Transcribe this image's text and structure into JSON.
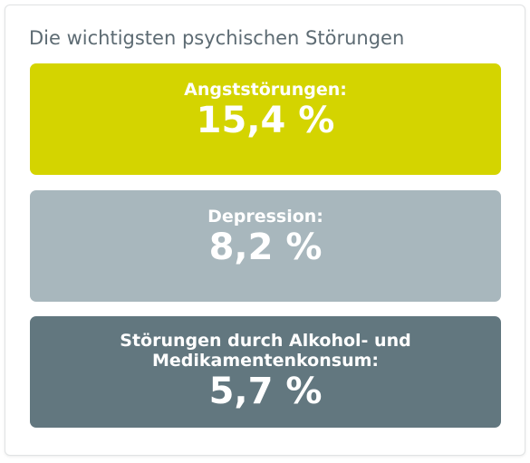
{
  "title": "Die wichtigsten psychischen Störungen",
  "items": [
    {
      "label": "Angststörungen:",
      "value": "15,4 %",
      "color": "#d4d400"
    },
    {
      "label": "Depression:",
      "value": "8,2 %",
      "color": "#a8b7bd"
    },
    {
      "label": "Störungen durch Alkohol- und\nMedikamentenkonsum:",
      "value": "5,7 %",
      "color": "#62777f"
    }
  ]
}
